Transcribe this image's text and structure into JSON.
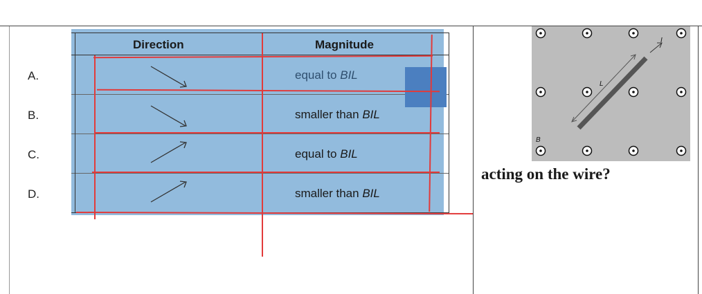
{
  "table": {
    "headers": {
      "direction": "Direction",
      "magnitude": "Magnitude"
    },
    "rows": [
      {
        "label": "A.",
        "direction": "down-right",
        "magnitude_prefix": "equal to ",
        "magnitude_symbol": "BIL"
      },
      {
        "label": "B.",
        "direction": "down-right",
        "magnitude_prefix": "smaller than ",
        "magnitude_symbol": "BIL"
      },
      {
        "label": "C.",
        "direction": "up-right",
        "magnitude_prefix": "equal to ",
        "magnitude_symbol": "BIL"
      },
      {
        "label": "D.",
        "direction": "up-right",
        "magnitude_prefix": "smaller than ",
        "magnitude_symbol": "BIL"
      }
    ]
  },
  "figure": {
    "label_B": "B",
    "label_L": "L",
    "label_I": "I"
  },
  "question_text": "acting on the wire?",
  "colors": {
    "table_fill": "#92bbdd",
    "annotation_red": "#e23a3a",
    "highlight_blue": "#4b7fc0",
    "figure_bg": "#bcbcbc"
  }
}
